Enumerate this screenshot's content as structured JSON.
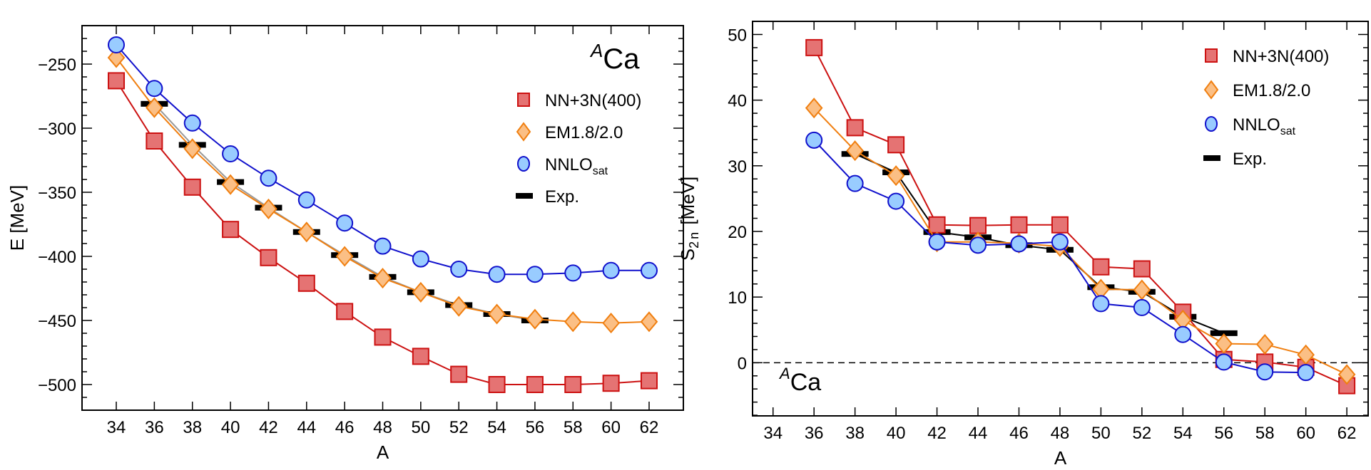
{
  "chart_data": [
    {
      "type": "line",
      "panel": "left",
      "title": "ACa",
      "title_super": "A",
      "title_main": "Ca",
      "xlabel": "A",
      "ylabel": "E [MeV]",
      "xlim": [
        32.2,
        63.8
      ],
      "ylim": [
        -520,
        -220
      ],
      "xticks": [
        34,
        36,
        38,
        40,
        42,
        44,
        46,
        48,
        50,
        52,
        54,
        56,
        58,
        60,
        62
      ],
      "yticks": [
        -250,
        -300,
        -350,
        -400,
        -450,
        -500
      ],
      "legend_position": "top-right",
      "series": [
        {
          "name": "NN+3N(400)",
          "marker": "square",
          "color": "#cc1111",
          "fill": "#e57373",
          "x": [
            34,
            36,
            38,
            40,
            42,
            44,
            46,
            48,
            50,
            52,
            54,
            56,
            58,
            60,
            62
          ],
          "y": [
            -263,
            -310,
            -346,
            -379,
            -401,
            -421,
            -443,
            -463,
            -478,
            -492,
            -500,
            -500,
            -500,
            -499,
            -497
          ]
        },
        {
          "name": "EM1.8/2.0",
          "marker": "diamond",
          "color": "#f07f10",
          "fill": "#fbbf85",
          "x": [
            34,
            36,
            38,
            40,
            42,
            44,
            46,
            48,
            50,
            52,
            54,
            56,
            58,
            60,
            62
          ],
          "y": [
            -245,
            -284,
            -316,
            -344,
            -363,
            -381,
            -400,
            -417,
            -428,
            -439,
            -445,
            -449,
            -451,
            -452,
            -451
          ]
        },
        {
          "name": "NNLOsat",
          "name_main": "NNLO",
          "name_sub": "sat",
          "marker": "circle",
          "color": "#1010cc",
          "fill": "#99ccff",
          "x": [
            34,
            36,
            38,
            40,
            42,
            44,
            46,
            48,
            50,
            52,
            54,
            56,
            58,
            60,
            62
          ],
          "y": [
            -235,
            -269,
            -296,
            -320,
            -339,
            -356,
            -374,
            -392,
            -402,
            -410,
            -414,
            -414,
            -413,
            -411,
            -411
          ]
        },
        {
          "name": "Exp.",
          "marker": "bar",
          "color": "#000000",
          "line_color": "#999999",
          "x": [
            36,
            38,
            40,
            42,
            44,
            46,
            48,
            50,
            52,
            54,
            56
          ],
          "y": [
            -281,
            -313,
            -342,
            -362,
            -381,
            -399,
            -416,
            -428,
            -438,
            -445,
            -450
          ]
        }
      ]
    },
    {
      "type": "line",
      "panel": "right",
      "title": "ACa",
      "title_super": "A",
      "title_main": "Ca",
      "xlabel": "A",
      "ylabel": "S2n [MeV]",
      "ylabel_main": "S",
      "ylabel_sub": "2 n",
      "ylabel_unit": " [MeV]",
      "xlim": [
        33.0,
        63.04
      ],
      "ylim": [
        -8.1,
        52
      ],
      "xticks": [
        34,
        36,
        38,
        40,
        42,
        44,
        46,
        48,
        50,
        52,
        54,
        56,
        58,
        60,
        62
      ],
      "yticks": [
        0,
        10,
        20,
        30,
        40,
        50
      ],
      "reference_line": 0,
      "legend_position": "top-right",
      "series": [
        {
          "name": "NN+3N(400)",
          "marker": "square",
          "color": "#cc1111",
          "fill": "#e57373",
          "x": [
            36,
            38,
            40,
            42,
            44,
            46,
            48,
            50,
            52,
            54,
            56,
            58,
            60,
            62
          ],
          "y": [
            48.0,
            35.8,
            33.2,
            21.0,
            20.9,
            21.0,
            21.0,
            14.6,
            14.3,
            7.7,
            0.5,
            0.1,
            -0.7,
            -3.5
          ]
        },
        {
          "name": "EM1.8/2.0",
          "marker": "diamond",
          "color": "#f07f10",
          "fill": "#fbbf85",
          "x": [
            36,
            38,
            40,
            42,
            44,
            46,
            48,
            50,
            52,
            54,
            56,
            58,
            60,
            62
          ],
          "y": [
            38.8,
            32.3,
            28.5,
            18.4,
            18.4,
            18.2,
            17.7,
            11.2,
            11.1,
            6.5,
            2.9,
            2.8,
            1.2,
            -1.8
          ]
        },
        {
          "name": "NNLOsat",
          "name_main": "NNLO",
          "name_sub": "sat",
          "marker": "circle",
          "color": "#1010cc",
          "fill": "#99ccff",
          "x": [
            36,
            38,
            40,
            42,
            44,
            46,
            48,
            50,
            52,
            54,
            56,
            58,
            60
          ],
          "y": [
            33.9,
            27.3,
            24.6,
            18.4,
            17.9,
            18.1,
            18.4,
            9.0,
            8.4,
            4.3,
            0.1,
            -1.4,
            -1.5
          ]
        },
        {
          "name": "Exp.",
          "marker": "bar",
          "color": "#000000",
          "line_color": "#000000",
          "x": [
            38,
            40,
            42,
            44,
            46,
            48,
            50,
            52,
            54,
            56
          ],
          "y": [
            31.8,
            29.0,
            19.9,
            19.1,
            17.9,
            17.2,
            11.5,
            10.8,
            7.0,
            4.5
          ]
        }
      ]
    }
  ]
}
